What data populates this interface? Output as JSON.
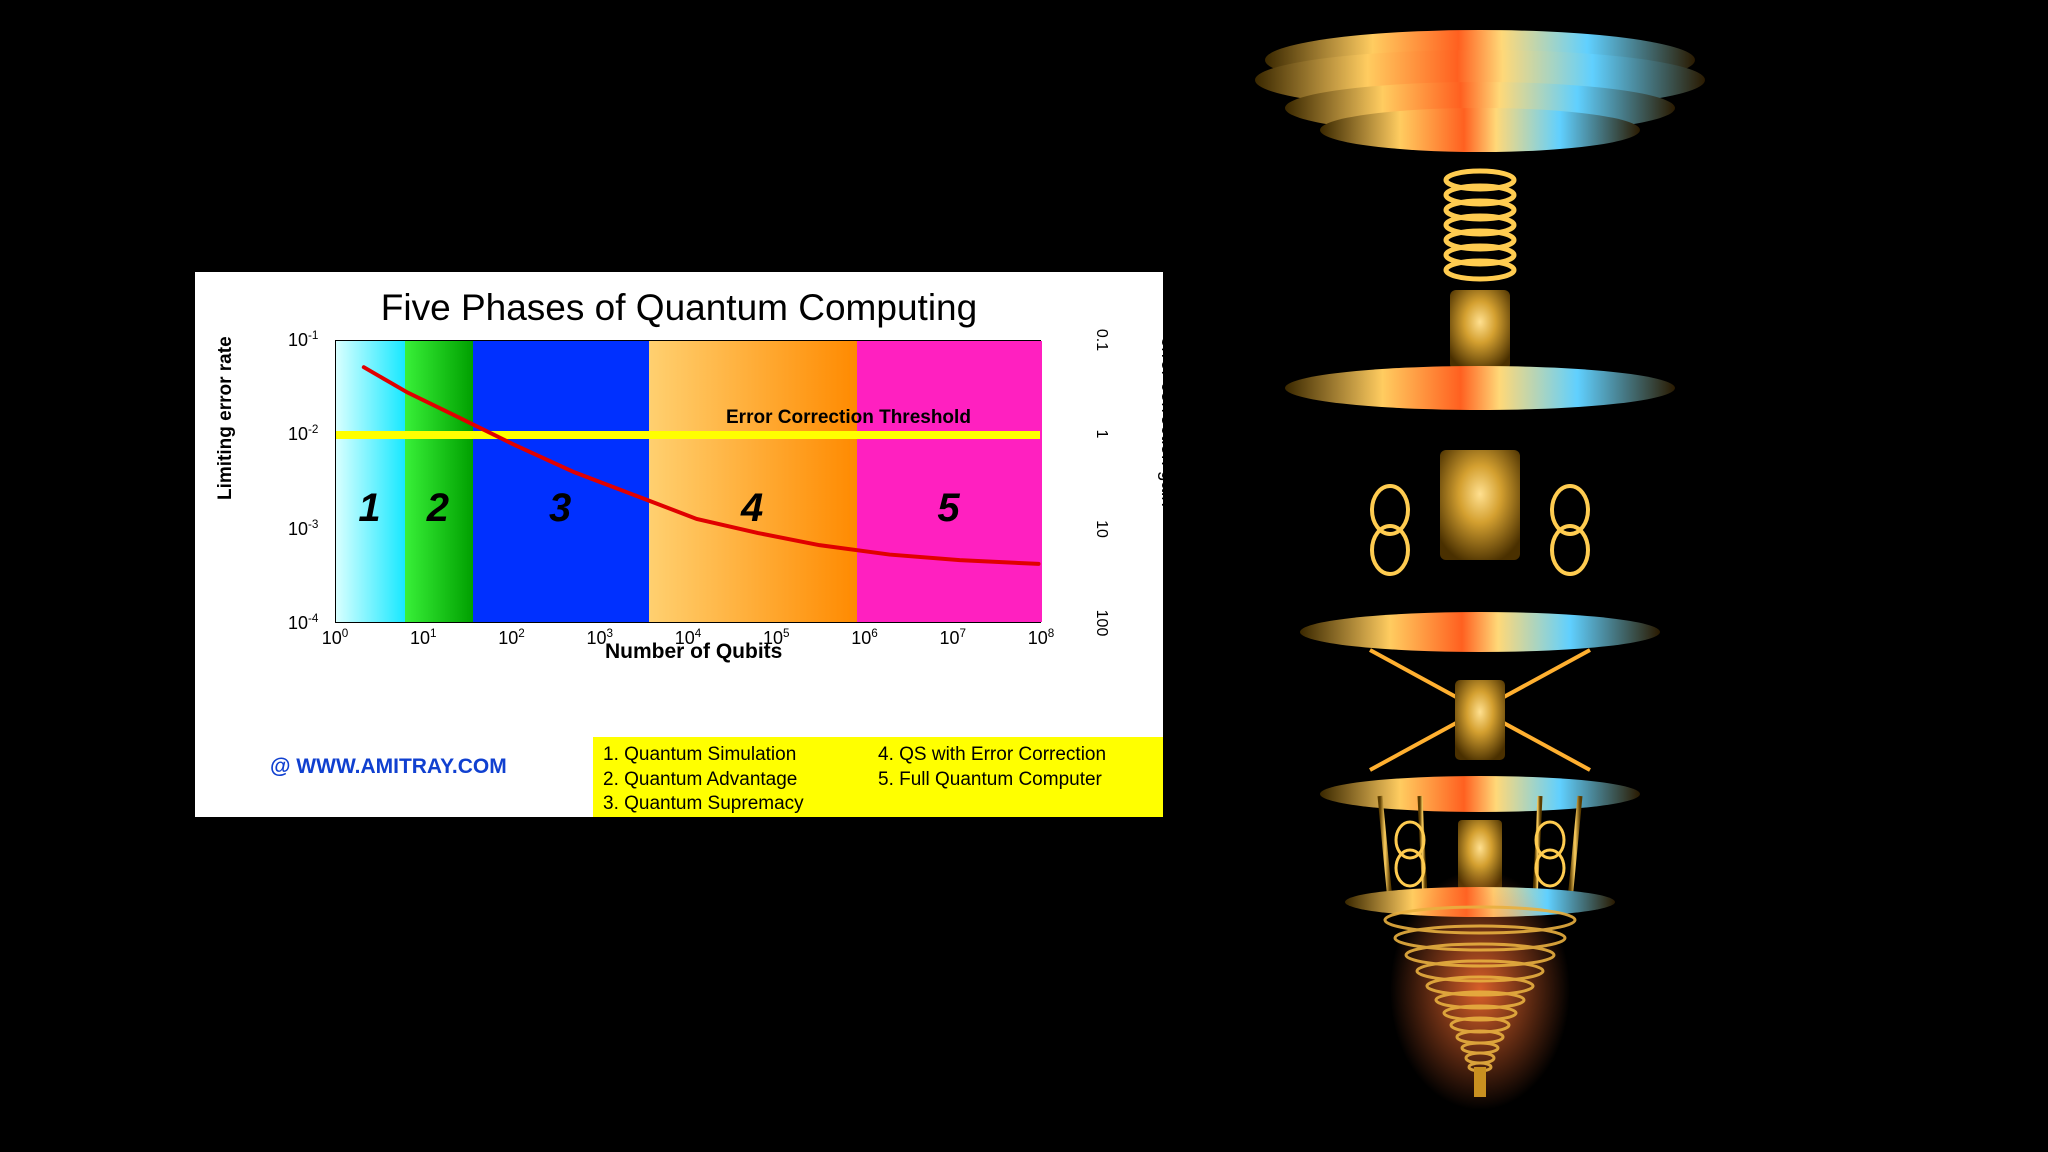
{
  "background_color": "#000000",
  "chart": {
    "panel_bg": "#ffffff",
    "title": "Five Phases of Quantum Computing",
    "title_fontsize": 37,
    "x_axis": {
      "label": "Number of Qubits",
      "scale": "log",
      "min_exp": 0,
      "max_exp": 8,
      "ticks": [
        "10⁰",
        "10¹",
        "10²",
        "10³",
        "10⁴",
        "10⁵",
        "10⁶",
        "10⁷",
        "10⁸"
      ]
    },
    "y_axis_left": {
      "label": "Limiting error rate",
      "scale": "log",
      "ticks": [
        "10⁻¹",
        "10⁻²",
        "10⁻³",
        "10⁻⁴"
      ],
      "tick_exponents": [
        -1,
        -2,
        -3,
        -4
      ]
    },
    "y_axis_right": {
      "label": "\"error correction gain\"",
      "ticks": [
        "0.1",
        "1",
        "10",
        "100"
      ]
    },
    "threshold": {
      "label": "Error Correction Threshold",
      "y_value_exp": -2,
      "line_color": "#ffff00",
      "line_width": 8
    },
    "phases": [
      {
        "num": "1",
        "x_start_exp": 0.0,
        "x_end_exp": 0.78,
        "color_start": "#d8ffff",
        "color_end": "#18e8ff"
      },
      {
        "num": "2",
        "x_start_exp": 0.78,
        "x_end_exp": 1.55,
        "color_start": "#38f038",
        "color_end": "#00a000"
      },
      {
        "num": "3",
        "x_start_exp": 1.55,
        "x_end_exp": 3.55,
        "color_start": "#0030ff",
        "color_end": "#0030ff"
      },
      {
        "num": "4",
        "x_start_exp": 3.55,
        "x_end_exp": 5.9,
        "color_start": "#ffd070",
        "color_end": "#ff8a00"
      },
      {
        "num": "5",
        "x_start_exp": 5.9,
        "x_end_exp": 8.0,
        "color_start": "#ff20c0",
        "color_end": "#ff20c0"
      }
    ],
    "curve": {
      "color": "#e00000",
      "width": 4,
      "points": [
        {
          "x_exp": 0.3,
          "y_exp": -1.28
        },
        {
          "x_exp": 0.8,
          "y_exp": -1.55
        },
        {
          "x_exp": 1.35,
          "y_exp": -1.8
        },
        {
          "x_exp": 2.0,
          "y_exp": -2.1
        },
        {
          "x_exp": 2.7,
          "y_exp": -2.4
        },
        {
          "x_exp": 3.4,
          "y_exp": -2.65
        },
        {
          "x_exp": 4.1,
          "y_exp": -2.9
        },
        {
          "x_exp": 4.8,
          "y_exp": -3.05
        },
        {
          "x_exp": 5.5,
          "y_exp": -3.18
        },
        {
          "x_exp": 6.3,
          "y_exp": -3.28
        },
        {
          "x_exp": 7.1,
          "y_exp": -3.34
        },
        {
          "x_exp": 8.0,
          "y_exp": -3.38
        }
      ]
    },
    "legend": {
      "bg": "#ffff00",
      "items": [
        "1. Quantum Simulation",
        "2. Quantum Advantage",
        "3. Quantum Supremacy",
        "4. QS with Error Correction",
        "5. Full Quantum Computer"
      ]
    },
    "attribution": "@ WWW.AMITRAY.COM",
    "attribution_color": "#1040d0"
  },
  "device": {
    "main_color": "#d4a030",
    "highlight_color": "#ff5010",
    "shadow_color": "#2a1a00"
  }
}
